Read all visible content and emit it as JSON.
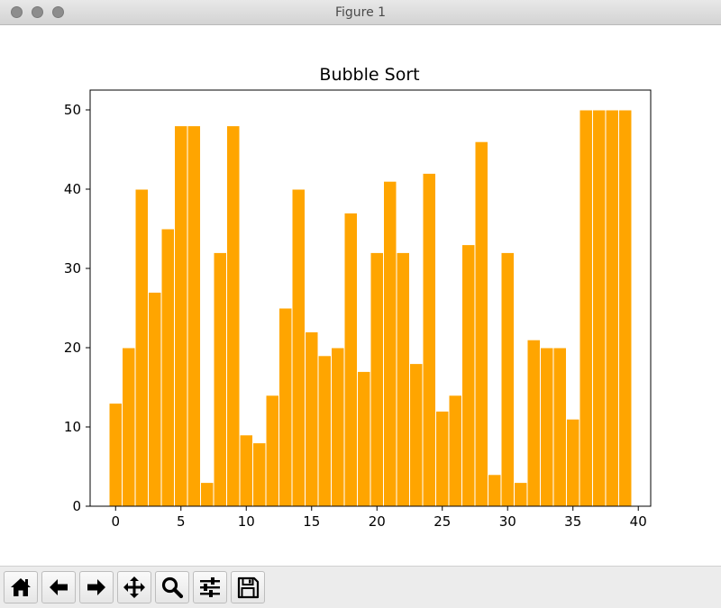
{
  "window": {
    "title": "Figure 1"
  },
  "toolbar": {
    "buttons": [
      {
        "name": "home-button",
        "icon": "home-icon"
      },
      {
        "name": "back-button",
        "icon": "arrow-left-icon"
      },
      {
        "name": "forward-button",
        "icon": "arrow-right-icon"
      },
      {
        "name": "pan-button",
        "icon": "move-icon"
      },
      {
        "name": "zoom-button",
        "icon": "magnifier-icon"
      },
      {
        "name": "configure-subplots-button",
        "icon": "sliders-icon"
      },
      {
        "name": "save-button",
        "icon": "floppy-disk-icon"
      }
    ]
  },
  "colors": {
    "bar": "#ffa500",
    "bar_edge": "#ffffff",
    "axes": "#000000"
  },
  "chart_data": {
    "type": "bar",
    "title": "Bubble Sort",
    "xlabel": "",
    "ylabel": "",
    "x": [
      0,
      1,
      2,
      3,
      4,
      5,
      6,
      7,
      8,
      9,
      10,
      11,
      12,
      13,
      14,
      15,
      16,
      17,
      18,
      19,
      20,
      21,
      22,
      23,
      24,
      25,
      26,
      27,
      28,
      29,
      30,
      31,
      32,
      33,
      34,
      35,
      36,
      37,
      38,
      39
    ],
    "values": [
      13,
      20,
      40,
      27,
      35,
      48,
      48,
      3,
      32,
      48,
      9,
      8,
      14,
      25,
      40,
      22,
      19,
      20,
      37,
      17,
      32,
      41,
      32,
      18,
      42,
      12,
      14,
      33,
      46,
      4,
      32,
      3,
      21,
      20,
      20,
      11,
      50,
      50,
      50,
      50
    ],
    "xlim": [
      -1.95,
      40.95
    ],
    "ylim": [
      0,
      52.5
    ],
    "xticks": [
      "0",
      "5",
      "10",
      "15",
      "20",
      "25",
      "30",
      "35",
      "40"
    ],
    "yticks": [
      "0",
      "10",
      "20",
      "30",
      "40",
      "50"
    ],
    "grid": false,
    "legend": "none"
  }
}
